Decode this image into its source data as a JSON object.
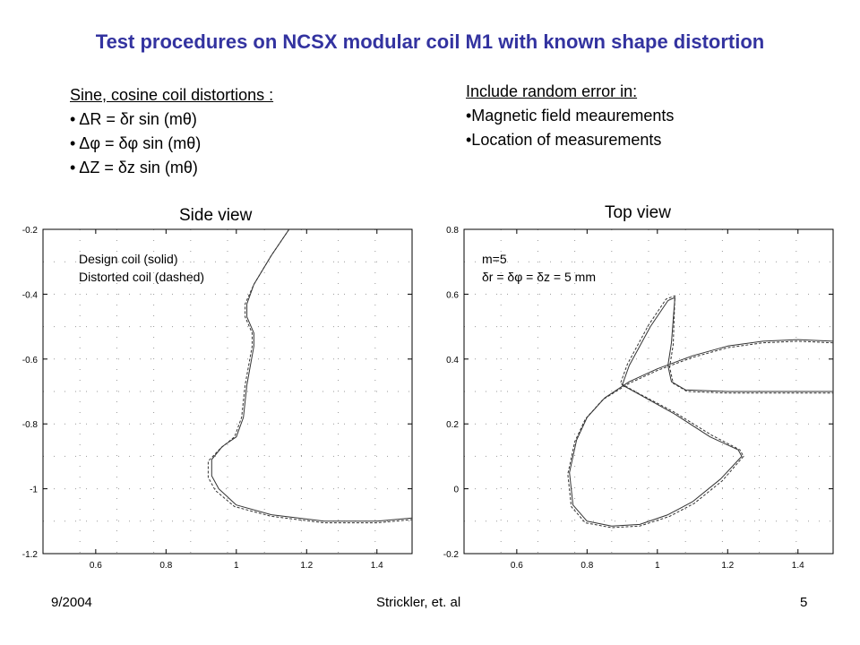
{
  "title": "Test procedures on NCSX modular coil M1 with known shape distortion",
  "left_box": {
    "heading": "Sine, cosine coil distortions :",
    "items": [
      "• ΔR = δr sin (mθ)",
      "• Δφ = δφ sin (mθ)",
      "• ΔZ = δz sin (mθ)"
    ]
  },
  "right_box": {
    "heading": "Include random error in:",
    "items": [
      "•Magnetic field meaurements",
      "•Location of measurements"
    ]
  },
  "footer": {
    "date": "9/2004",
    "authors": "Strickler, et. al",
    "page": "5"
  },
  "colors": {
    "title": "#3333a0",
    "curve": "#333333"
  },
  "chart_data": [
    {
      "type": "line",
      "title": "Side view",
      "annotations": [
        "Design coil (solid)",
        "Distorted coil (dashed)"
      ],
      "xlim": [
        0.45,
        1.5
      ],
      "ylim": [
        -1.2,
        -0.2
      ],
      "xticks": [
        0.6,
        0.8,
        1,
        1.2,
        1.4
      ],
      "xtick_labels": [
        "0.6",
        "0.8",
        "1",
        "1.2",
        "1.4"
      ],
      "yticks": [
        -1.2,
        -1,
        -0.8,
        -0.6,
        -0.4,
        -0.2
      ],
      "ytick_labels": [
        "-1.2",
        "-1",
        "-0.8",
        "-0.6",
        "-0.4",
        "-0.2"
      ],
      "grid": "dotted",
      "series": [
        {
          "style": "solid",
          "x": [
            1.15,
            1.1,
            1.05,
            1.03,
            1.03,
            1.05,
            1.05,
            1.03,
            1.02,
            1.0,
            0.96,
            0.93,
            0.93,
            0.95,
            1.0,
            1.1,
            1.25,
            1.4,
            1.5
          ],
          "y": [
            -0.2,
            -0.28,
            -0.37,
            -0.43,
            -0.47,
            -0.52,
            -0.56,
            -0.68,
            -0.78,
            -0.84,
            -0.87,
            -0.91,
            -0.96,
            -1.0,
            -1.05,
            -1.08,
            -1.1,
            -1.1,
            -1.09
          ]
        },
        {
          "style": "dashed",
          "x": [
            1.15,
            1.1,
            1.05,
            1.025,
            1.025,
            1.045,
            1.045,
            1.025,
            1.015,
            0.995,
            0.955,
            0.92,
            0.92,
            0.94,
            0.995,
            1.1,
            1.25,
            1.4,
            1.5
          ],
          "y": [
            -0.2,
            -0.28,
            -0.37,
            -0.43,
            -0.47,
            -0.52,
            -0.56,
            -0.68,
            -0.78,
            -0.84,
            -0.875,
            -0.915,
            -0.965,
            -1.005,
            -1.055,
            -1.085,
            -1.105,
            -1.105,
            -1.095
          ]
        }
      ]
    },
    {
      "type": "line",
      "title": "Top view",
      "annotations": [
        "m=5",
        "δr = δφ = δz = 5 mm"
      ],
      "xlim": [
        0.45,
        1.5
      ],
      "ylim": [
        -0.2,
        0.8
      ],
      "xticks": [
        0.6,
        0.8,
        1,
        1.2,
        1.4
      ],
      "xtick_labels": [
        "0.6",
        "0.8",
        "1",
        "1.2",
        "1.4"
      ],
      "yticks": [
        -0.2,
        0,
        0.2,
        0.4,
        0.6,
        0.8
      ],
      "ytick_labels": [
        "-0.2",
        "0",
        "0.2",
        "0.4",
        "0.6",
        "0.8"
      ],
      "grid": "dotted",
      "series": [
        {
          "style": "solid",
          "x": [
            1.5,
            1.4,
            1.3,
            1.2,
            1.1,
            1.0,
            0.92,
            0.85,
            0.8,
            0.77,
            0.75,
            0.76,
            0.8,
            0.87,
            0.95,
            1.03,
            1.1,
            1.18,
            1.24,
            1.23,
            1.15,
            1.05,
            0.95,
            0.9,
            0.92,
            0.98,
            1.03,
            1.05,
            1.04,
            1.03,
            1.04,
            1.08,
            1.2,
            1.35,
            1.5
          ],
          "y": [
            0.455,
            0.46,
            0.455,
            0.44,
            0.41,
            0.37,
            0.33,
            0.28,
            0.22,
            0.15,
            0.05,
            -0.05,
            -0.1,
            -0.115,
            -0.11,
            -0.08,
            -0.04,
            0.03,
            0.1,
            0.12,
            0.16,
            0.23,
            0.29,
            0.32,
            0.38,
            0.5,
            0.58,
            0.59,
            0.45,
            0.38,
            0.33,
            0.305,
            0.3,
            0.3,
            0.3
          ]
        },
        {
          "style": "dashed",
          "x": [
            1.5,
            1.4,
            1.3,
            1.2,
            1.1,
            1.0,
            0.92,
            0.845,
            0.795,
            0.765,
            0.745,
            0.755,
            0.795,
            0.87,
            0.95,
            1.035,
            1.105,
            1.185,
            1.245,
            1.235,
            1.155,
            1.05,
            0.945,
            0.895,
            0.915,
            0.975,
            1.025,
            1.05,
            1.045,
            1.035,
            1.045,
            1.085,
            1.2,
            1.35,
            1.5
          ],
          "y": [
            0.45,
            0.455,
            0.45,
            0.435,
            0.405,
            0.365,
            0.325,
            0.275,
            0.215,
            0.145,
            0.045,
            -0.055,
            -0.105,
            -0.12,
            -0.115,
            -0.085,
            -0.045,
            0.025,
            0.1,
            0.12,
            0.165,
            0.235,
            0.295,
            0.325,
            0.385,
            0.505,
            0.585,
            0.595,
            0.445,
            0.375,
            0.325,
            0.3,
            0.295,
            0.295,
            0.295
          ]
        }
      ]
    }
  ]
}
